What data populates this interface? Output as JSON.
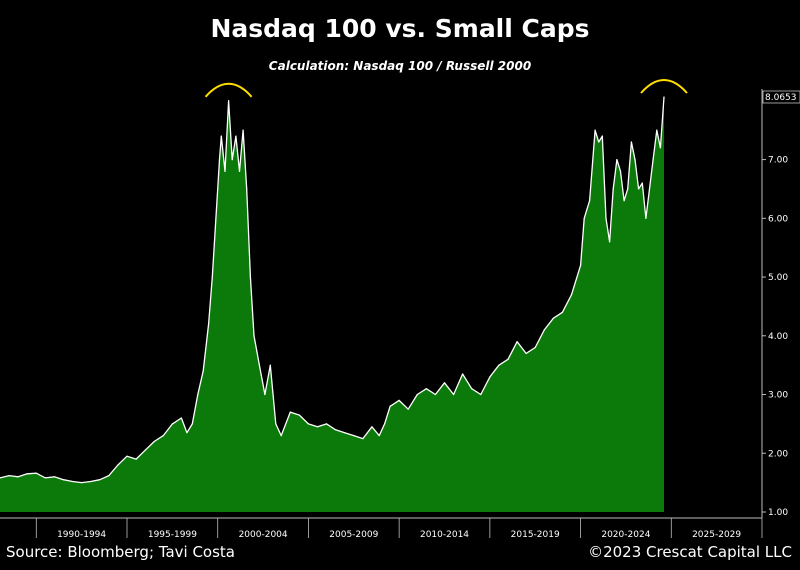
{
  "chart_data": {
    "type": "area",
    "title": "Nasdaq 100 vs. Small Caps",
    "subtitle": "Calculation: Nasdaq 100 / Russell 2000",
    "xlabel": "",
    "ylabel": "",
    "xlim": [
      1988,
      2030
    ],
    "ylim": [
      1.0,
      8.0653
    ],
    "x_tick_labels": [
      "1990-1994",
      "1995-1999",
      "2000-2004",
      "2005-2009",
      "2010-2014",
      "2015-2019",
      "2020-2024",
      "2025-2029"
    ],
    "x_tick_ranges": [
      [
        1990,
        1995
      ],
      [
        1995,
        2000
      ],
      [
        2000,
        2005
      ],
      [
        2005,
        2010
      ],
      [
        2010,
        2015
      ],
      [
        2015,
        2020
      ],
      [
        2020,
        2025
      ],
      [
        2025,
        2030
      ]
    ],
    "y_ticks": [
      {
        "value": 1.0,
        "label": "1.00"
      },
      {
        "value": 2.0,
        "label": "2.00"
      },
      {
        "value": 3.0,
        "label": "3.00"
      },
      {
        "value": 4.0,
        "label": "4.00"
      },
      {
        "value": 5.0,
        "label": "5.00"
      },
      {
        "value": 6.0,
        "label": "6.00"
      },
      {
        "value": 7.0,
        "label": "7.00"
      }
    ],
    "last_value_label": "8.0653",
    "grid": false,
    "series": [
      {
        "x": [
          1988.0,
          1988.5,
          1989.0,
          1989.5,
          1990.0,
          1990.5,
          1991.0,
          1991.5,
          1992.0,
          1992.5,
          1993.0,
          1993.5,
          1994.0,
          1994.5,
          1995.0,
          1995.5,
          1996.0,
          1996.5,
          1997.0,
          1997.5,
          1998.0,
          1998.3,
          1998.6,
          1998.9,
          1999.2,
          1999.5,
          1999.7,
          1999.9,
          2000.1,
          2000.2,
          2000.4,
          2000.6,
          2000.8,
          2001.0,
          2001.2,
          2001.4,
          2001.6,
          2001.8,
          2002.0,
          2002.3,
          2002.6,
          2002.9,
          2003.2,
          2003.5,
          2004.0,
          2004.5,
          2005.0,
          2005.5,
          2006.0,
          2006.5,
          2007.0,
          2007.5,
          2008.0,
          2008.5,
          2008.9,
          2009.2,
          2009.5,
          2010.0,
          2010.5,
          2011.0,
          2011.5,
          2012.0,
          2012.5,
          2013.0,
          2013.5,
          2014.0,
          2014.5,
          2015.0,
          2015.5,
          2016.0,
          2016.5,
          2017.0,
          2017.5,
          2018.0,
          2018.5,
          2019.0,
          2019.5,
          2020.0,
          2020.2,
          2020.5,
          2020.8,
          2021.0,
          2021.2,
          2021.4,
          2021.6,
          2021.8,
          2022.0,
          2022.2,
          2022.4,
          2022.6,
          2022.8,
          2023.0,
          2023.2,
          2023.4,
          2023.6,
          2023.8,
          2024.0,
          2024.2,
          2024.4,
          2024.6
        ],
        "values": [
          1.58,
          1.62,
          1.6,
          1.65,
          1.66,
          1.58,
          1.6,
          1.55,
          1.52,
          1.5,
          1.52,
          1.55,
          1.62,
          1.8,
          1.95,
          1.9,
          2.05,
          2.2,
          2.3,
          2.5,
          2.6,
          2.35,
          2.5,
          3.0,
          3.4,
          4.2,
          5.0,
          6.0,
          7.0,
          7.4,
          6.8,
          8.0,
          7.0,
          7.4,
          6.8,
          7.5,
          6.5,
          5.0,
          4.0,
          3.5,
          3.0,
          3.5,
          2.5,
          2.3,
          2.7,
          2.65,
          2.5,
          2.45,
          2.5,
          2.4,
          2.35,
          2.3,
          2.25,
          2.45,
          2.3,
          2.5,
          2.8,
          2.9,
          2.75,
          3.0,
          3.1,
          3.0,
          3.2,
          3.0,
          3.35,
          3.1,
          3.0,
          3.3,
          3.5,
          3.6,
          3.9,
          3.7,
          3.8,
          4.1,
          4.3,
          4.4,
          4.7,
          5.2,
          6.0,
          6.3,
          7.5,
          7.3,
          7.4,
          6.0,
          5.6,
          6.5,
          7.0,
          6.8,
          6.3,
          6.5,
          7.3,
          7.0,
          6.5,
          6.6,
          6.0,
          6.5,
          7.0,
          7.5,
          7.2,
          8.0653
        ]
      }
    ],
    "colors": {
      "fill": "#0b7a0b",
      "line": "#ffffff",
      "highlight_arcs": "#ffdd00",
      "background": "#000000",
      "axis": "#bdbdbd"
    },
    "annotations": [
      {
        "type": "arc",
        "near_x": 2000.6,
        "color": "#ffdd00"
      },
      {
        "type": "arc",
        "near_x": 2024.6,
        "color": "#ffdd00"
      }
    ]
  },
  "footer": {
    "source": "Source: Bloomberg; Tavi Costa",
    "copyright": "©2023 Crescat Capital LLC"
  }
}
